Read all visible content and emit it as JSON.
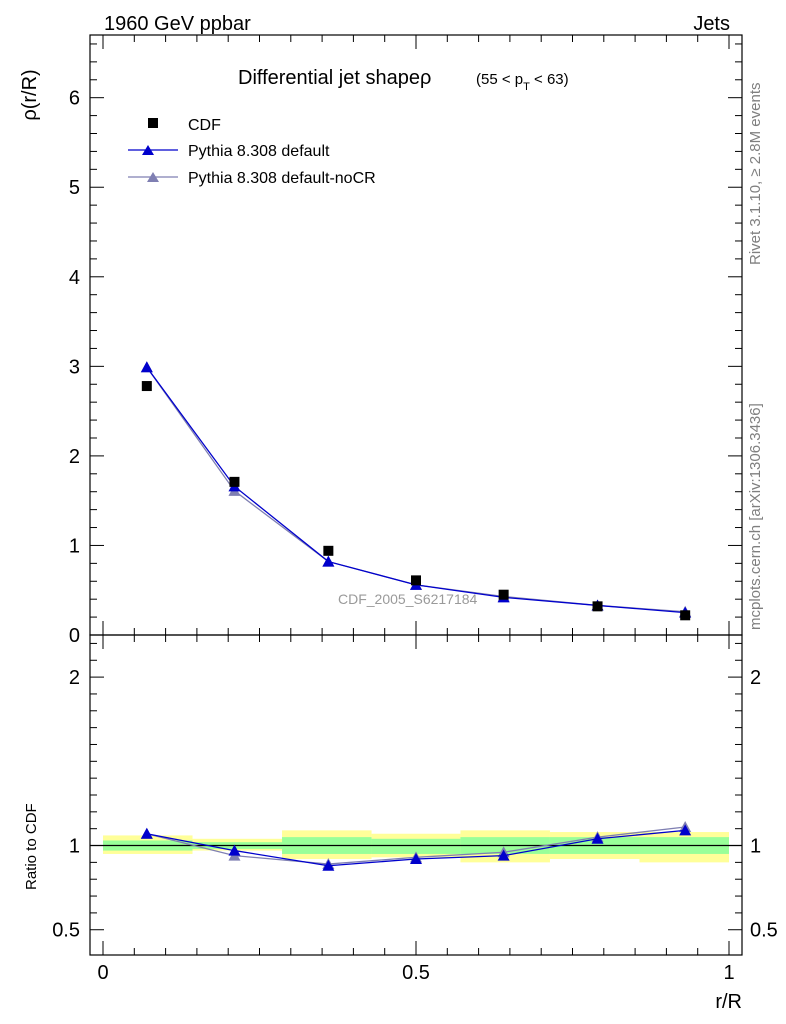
{
  "header": {
    "left": "1960 GeV ppbar",
    "right": "Jets"
  },
  "side_labels": {
    "rivet": "Rivet 3.1.10, ≥ 2.8M events",
    "mcplots": "mcplots.cern.ch [arXiv:1306.3436]"
  },
  "watermark": "CDF_2005_S6217184",
  "chart_data": [
    {
      "type": "scatter",
      "title": "Differential jet shapeρ",
      "subtitle": "(55 < p_T < 63)",
      "ylabel": "ρ(r/R)",
      "xlabel": "",
      "xlim": [
        0,
        1
      ],
      "ylim": [
        0,
        6.7
      ],
      "y_ticks": [
        "0",
        "1",
        "2",
        "3",
        "4",
        "5",
        "6"
      ],
      "legend_position": "top-left",
      "x": [
        0.07,
        0.21,
        0.36,
        0.5,
        0.64,
        0.79,
        0.93
      ],
      "series": [
        {
          "name": "CDF",
          "marker": "square",
          "color": "#000000",
          "values": [
            2.78,
            1.71,
            0.94,
            0.61,
            0.45,
            0.32,
            0.22
          ]
        },
        {
          "name": "Pythia 8.308 default",
          "marker": "triangle",
          "color": "#0000cc",
          "values": [
            2.99,
            1.66,
            0.82,
            0.56,
            0.42,
            0.33,
            0.25
          ]
        },
        {
          "name": "Pythia 8.308 default-noCR",
          "marker": "triangle",
          "color": "#7f7fb2",
          "values": [
            2.99,
            1.61,
            0.82,
            0.56,
            0.43,
            0.33,
            0.26
          ]
        }
      ]
    },
    {
      "type": "line",
      "title": "",
      "xlabel": "r/R",
      "ylabel": "Ratio to CDF",
      "xlim": [
        0,
        1
      ],
      "ylim": [
        0.35,
        2.25
      ],
      "x_ticks": [
        "0",
        "0.5",
        "1"
      ],
      "y_ticks": [
        "0.5",
        "1",
        "2"
      ],
      "reference_line": 1,
      "bands": {
        "x_edges": [
          0,
          0.143,
          0.286,
          0.429,
          0.571,
          0.714,
          0.857,
          1
        ],
        "yellow": [
          [
            0.95,
            1.06
          ],
          [
            0.97,
            1.04
          ],
          [
            0.92,
            1.09
          ],
          [
            0.93,
            1.07
          ],
          [
            0.9,
            1.09
          ],
          [
            0.92,
            1.08
          ],
          [
            0.9,
            1.08
          ]
        ],
        "green": [
          [
            0.97,
            1.03
          ],
          [
            0.98,
            1.02
          ],
          [
            0.95,
            1.05
          ],
          [
            0.95,
            1.04
          ],
          [
            0.95,
            1.05
          ],
          [
            0.95,
            1.05
          ],
          [
            0.95,
            1.05
          ]
        ]
      },
      "x": [
        0.07,
        0.21,
        0.36,
        0.5,
        0.64,
        0.79,
        0.93
      ],
      "series": [
        {
          "name": "Pythia 8.308 default",
          "color": "#0000cc",
          "values": [
            1.07,
            0.97,
            0.88,
            0.92,
            0.94,
            1.04,
            1.09
          ]
        },
        {
          "name": "Pythia 8.308 default-noCR",
          "color": "#7f7fb2",
          "values": [
            1.07,
            0.94,
            0.89,
            0.93,
            0.96,
            1.05,
            1.11
          ]
        }
      ]
    }
  ]
}
